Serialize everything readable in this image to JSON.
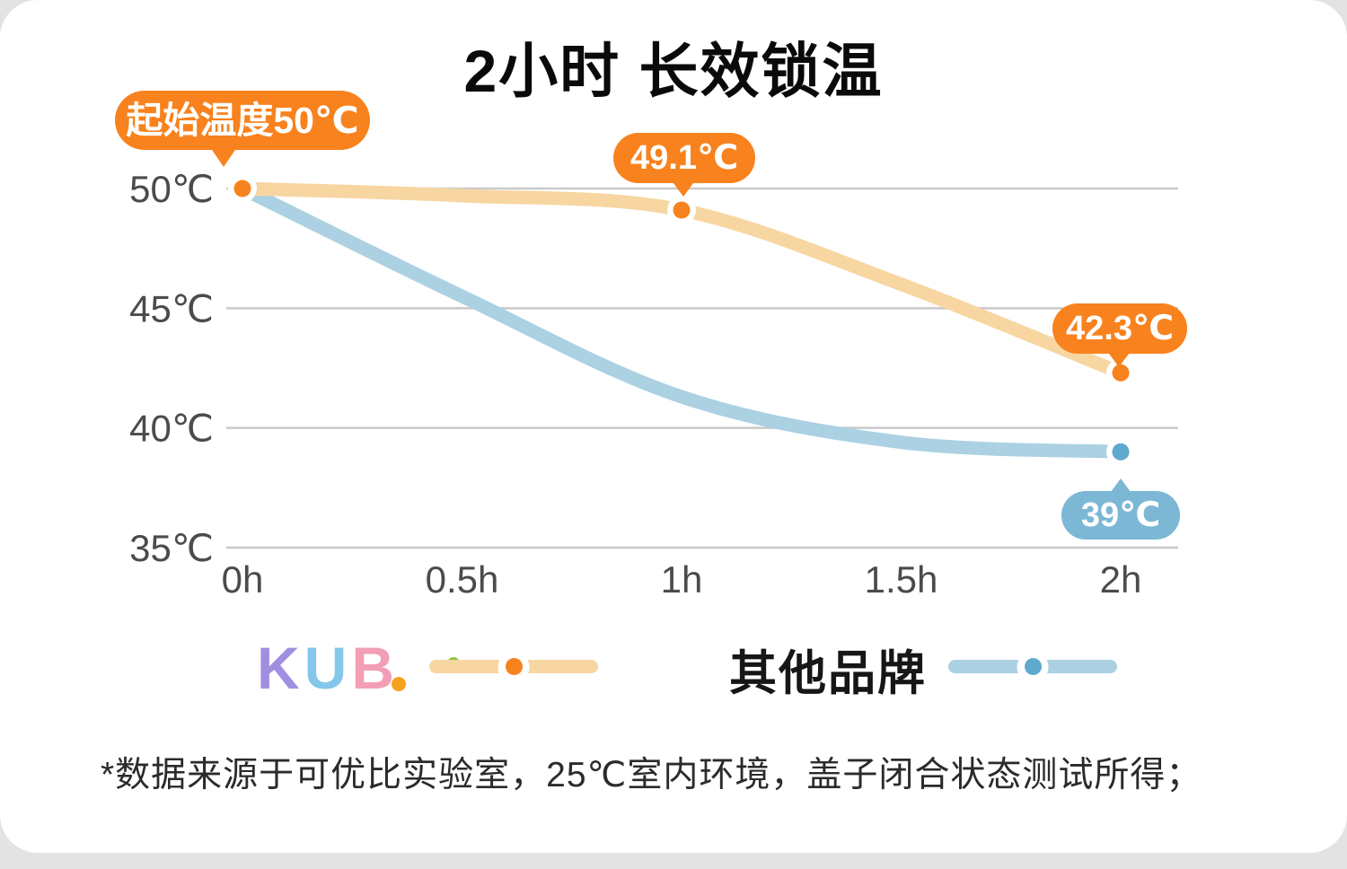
{
  "page": {
    "footnote": "*数据来源于可优比实验室，25℃室内环境，盖子闭合状态测试所得；"
  },
  "legend": {
    "kub_letters": [
      "K",
      "U",
      "B"
    ],
    "other_label": "其他品牌"
  },
  "colors": {
    "orange": "#F8821D",
    "orange_line": "#F8D6A2",
    "blue_badge": "#7CB8D5",
    "blue_dot": "#5FA8CE",
    "blue_line": "#ABD1E3",
    "grid": "#C9C9C9",
    "axis_text": "#4B4B4B"
  },
  "chart_data": {
    "type": "line",
    "title": "2小时 长效锁温",
    "x": [
      0,
      0.5,
      1,
      1.5,
      2
    ],
    "x_tick_labels": [
      "0h",
      "0.5h",
      "1h",
      "1.5h",
      "2h"
    ],
    "xlim": [
      0,
      2
    ],
    "y_ticks": [
      50,
      45,
      40,
      35
    ],
    "y_tick_labels": [
      "50℃",
      "45℃",
      "40℃",
      "35℃"
    ],
    "ylim": [
      35,
      50
    ],
    "grid": "horizontal",
    "legend_position": "bottom",
    "series": [
      {
        "name": "KUB",
        "values": [
          50,
          49.7,
          49.1,
          46.0,
          42.3
        ],
        "line_color_key": "orange_line",
        "dot_color_key": "orange",
        "markers": [
          0,
          1,
          2
        ]
      },
      {
        "name": "其他品牌",
        "values": [
          50,
          45.5,
          41.3,
          39.4,
          39
        ],
        "line_color_key": "blue_line",
        "dot_color_key": "blue_dot",
        "markers": [
          2
        ]
      }
    ],
    "annotations": [
      {
        "text": "起始温度50℃",
        "series": "KUB",
        "x": 0
      },
      {
        "text": "49.1℃",
        "series": "KUB",
        "x": 1
      },
      {
        "text": "42.3℃",
        "series": "KUB",
        "x": 2
      },
      {
        "text": "39℃",
        "series": "其他品牌",
        "x": 2
      }
    ]
  }
}
